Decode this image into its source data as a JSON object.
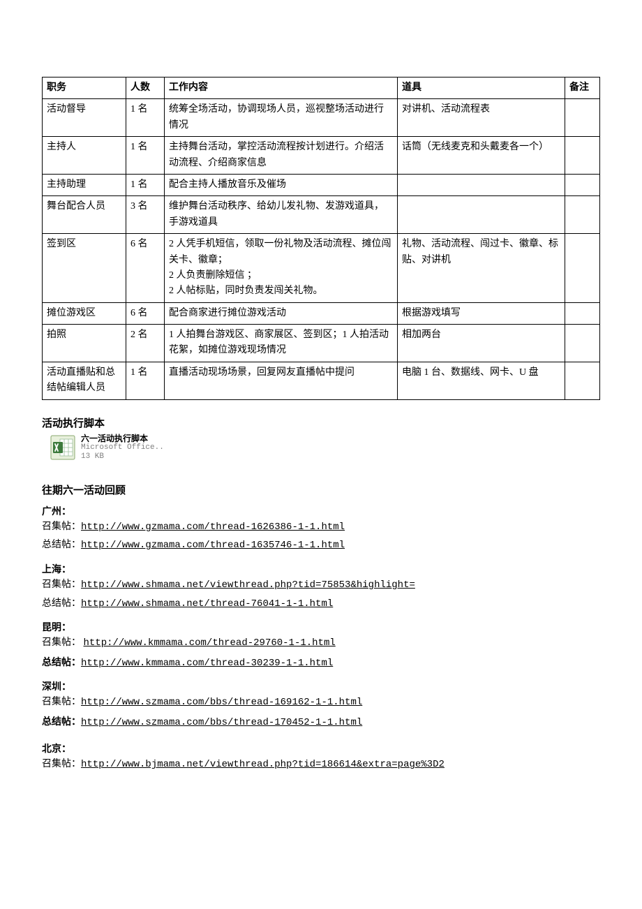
{
  "table": {
    "headers": [
      "职务",
      "人数",
      "工作内容",
      "道具",
      "备注"
    ],
    "rows": [
      {
        "role": "活动督导",
        "count": "1 名",
        "work": "统筹全场活动，协调现场人员，巡视整场活动进行情况",
        "props": "对讲机、活动流程表",
        "notes": ""
      },
      {
        "role": "主持人",
        "count": "1 名",
        "work": "主持舞台活动，掌控活动流程按计划进行。介绍活动流程、介绍商家信息",
        "props": "话筒（无线麦克和头戴麦各一个）",
        "notes": ""
      },
      {
        "role": "主持助理",
        "count": "1 名",
        "work": "配合主持人播放音乐及催场",
        "props": "",
        "notes": ""
      },
      {
        "role": "舞台配合人员",
        "count": "3 名",
        "work": "维护舞台活动秩序、给幼儿发礼物、发游戏道具，手游戏道具",
        "props": "",
        "notes": ""
      },
      {
        "role": "签到区",
        "count": "6 名",
        "work": "2 人凭手机短信，领取一份礼物及活动流程、摊位闯关卡、徽章；\n2 人负责删除短信 ；\n2 人帖标贴，同时负责发闯关礼物。",
        "props": "礼物、活动流程、闯过卡、徽章、标贴、对讲机",
        "notes": ""
      },
      {
        "role": "摊位游戏区",
        "count": "6 名",
        "work": "配合商家进行摊位游戏活动",
        "props": "根据游戏填写",
        "notes": ""
      },
      {
        "role": "拍照",
        "count": "2 名",
        "work": "1 人拍舞台游戏区、商家展区、签到区；1 人拍活动花絮，如摊位游戏现场情况",
        "props": "相加两台",
        "notes": ""
      },
      {
        "role": "活动直播贴和总结帖编辑人员",
        "count": "1 名",
        "work": "直播活动现场场景，回复网友直播帖中提问",
        "props": "电脑 1 台、数据线、网卡、U 盘",
        "notes": ""
      }
    ]
  },
  "script_section": {
    "heading": "活动执行脚本",
    "file_name": "六一活动执行脚本",
    "file_app": "Microsoft Office..",
    "file_size": "13 KB",
    "icon_colors": {
      "border": "#8aa96f",
      "bg": "#e8f0dc",
      "accent": "#3c7a3c",
      "paper": "#ffffff",
      "rule": "#9bbf9b"
    }
  },
  "review_section": {
    "heading": "往期六一活动回顾",
    "cities": [
      {
        "name": "广州：",
        "sep": false,
        "links": [
          {
            "label": "召集帖：",
            "label_bold": false,
            "url": "http://www.gzmama.com/thread-1626386-1-1.html"
          },
          {
            "label": "总结帖：",
            "label_bold": false,
            "url": "http://www.gzmama.com/thread-1635746-1-1.html"
          }
        ]
      },
      {
        "name": "上海：",
        "sep": false,
        "links": [
          {
            "label": "召集帖：",
            "label_bold": false,
            "url": "http://www.shmama.net/viewthread.php?tid=75853&highlight="
          },
          {
            "label": "总结帖：",
            "label_bold": false,
            "url": "http://www.shmama.net/thread-76041-1-1.html"
          }
        ]
      },
      {
        "name": "昆明：",
        "sep": false,
        "links": [
          {
            "label": "召集帖： ",
            "label_bold": false,
            "url": "http://www.kmmama.com/thread-29760-1-1.html"
          },
          {
            "label": "总结帖：",
            "label_bold": true,
            "url": "http://www.kmmama.com/thread-30239-1-1.html"
          }
        ]
      },
      {
        "name": "深圳：",
        "sep": false,
        "links": [
          {
            "label": "召集帖：",
            "label_bold": false,
            "url": "http://www.szmama.com/bbs/thread-169162-1-1.html"
          },
          {
            "label": "总结帖：",
            "label_bold": true,
            "url": "http://www.szmama.com/bbs/thread-170452-1-1.html"
          }
        ]
      },
      {
        "name": "北京：",
        "sep": true,
        "links": [
          {
            "label": "召集帖：",
            "label_bold": false,
            "url": "http://www.bjmama.net/viewthread.php?tid=186614&extra=page%3D2"
          }
        ]
      }
    ]
  }
}
